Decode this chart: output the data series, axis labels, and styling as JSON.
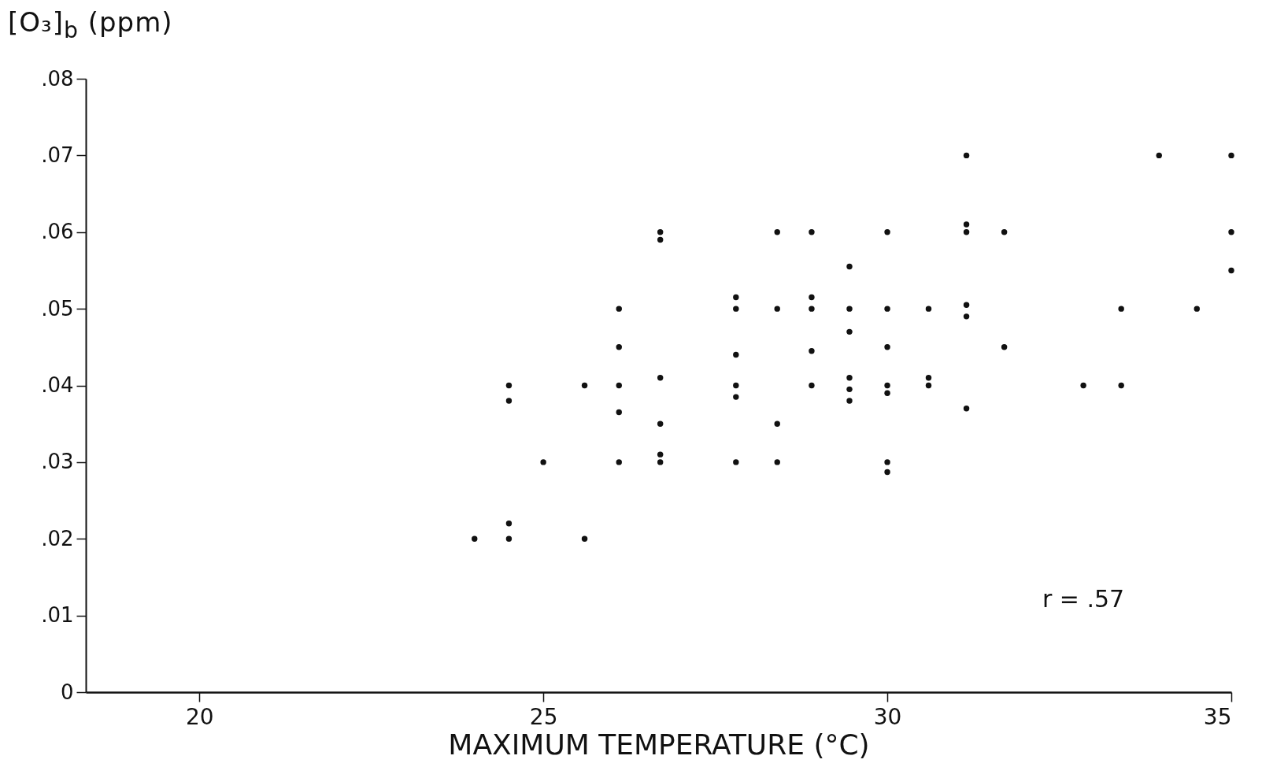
{
  "chart_data": {
    "type": "scatter",
    "ylabel": "[O₃]$_{b}$ (ppm)",
    "xlabel": "MAXIMUM TEMPERATURE (°C)",
    "annotations": [
      "r = .57"
    ],
    "x": [
      24.0,
      24.5,
      24.5,
      24.5,
      24.5,
      25.0,
      25.6,
      25.6,
      26.1,
      26.1,
      26.1,
      26.1,
      26.1,
      26.7,
      26.7,
      26.7,
      26.7,
      26.7,
      26.7,
      27.8,
      27.8,
      27.8,
      27.8,
      27.8,
      27.8,
      28.4,
      28.4,
      28.4,
      28.4,
      28.9,
      28.9,
      28.9,
      28.9,
      28.9,
      29.45,
      29.45,
      29.45,
      29.45,
      29.45,
      29.45,
      30.0,
      30.0,
      30.0,
      30.0,
      30.0,
      30.0,
      30.0,
      30.6,
      30.6,
      30.6,
      31.15,
      31.15,
      31.15,
      31.15,
      31.15,
      31.15,
      31.7,
      31.7,
      32.85,
      33.4,
      33.4,
      33.95,
      34.5,
      35.0,
      35.0,
      35.0
    ],
    "values": [
      0.02,
      0.022,
      0.02,
      0.04,
      0.038,
      0.03,
      0.04,
      0.02,
      0.05,
      0.045,
      0.04,
      0.0365,
      0.03,
      0.06,
      0.059,
      0.041,
      0.035,
      0.031,
      0.03,
      0.0515,
      0.05,
      0.044,
      0.04,
      0.0385,
      0.03,
      0.06,
      0.05,
      0.035,
      0.03,
      0.06,
      0.0515,
      0.05,
      0.0445,
      0.04,
      0.0555,
      0.05,
      0.047,
      0.041,
      0.0395,
      0.038,
      0.06,
      0.05,
      0.045,
      0.04,
      0.039,
      0.03,
      0.0287,
      0.05,
      0.041,
      0.04,
      0.07,
      0.061,
      0.06,
      0.0505,
      0.049,
      0.037,
      0.06,
      0.045,
      0.04,
      0.05,
      0.04,
      0.07,
      0.05,
      0.07,
      0.06,
      0.055
    ],
    "color": "#111111",
    "marker": "circle",
    "xlim": [
      18.35,
      35
    ],
    "xticks": [
      20,
      25,
      30,
      35
    ],
    "ylim": [
      0,
      0.08
    ],
    "yticks": [
      0,
      {
        "value": 0.01,
        "label": ".01"
      },
      {
        "value": 0.02,
        "label": ".02"
      },
      {
        "value": 0.03,
        "label": ".03"
      },
      {
        "value": 0.04,
        "label": ".04"
      },
      {
        "value": 0.05,
        "label": ".05"
      },
      {
        "value": 0.06,
        "label": ".06"
      },
      {
        "value": 0.07,
        "label": ".07"
      },
      {
        "value": 0.08,
        "label": ".08"
      }
    ],
    "grid": false,
    "legend": false
  }
}
